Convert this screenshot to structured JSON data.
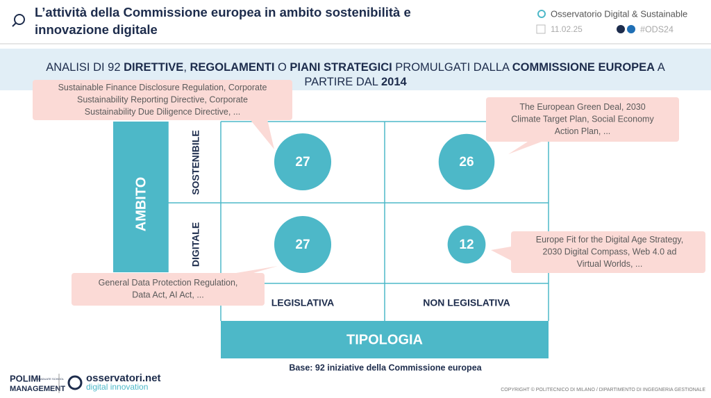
{
  "header": {
    "title_lines": [
      "L’attività della Commissione europea in ambito sostenibilità e",
      "innovazione digitale"
    ],
    "source": "Osservatorio Digital & Sustainable",
    "date": "11.02.25",
    "hashtag": "#ODS24"
  },
  "subtitle": {
    "line1": [
      {
        "text": "ANALISI DI 92 ",
        "bold": false
      },
      {
        "text": "DIRETTIVE",
        "bold": true
      },
      {
        "text": ", ",
        "bold": false
      },
      {
        "text": "REGOLAMENTI",
        "bold": true
      },
      {
        "text": " O ",
        "bold": false
      },
      {
        "text": "PIANI STRATEGICI",
        "bold": true
      },
      {
        "text": " PROMULGATI DALLA ",
        "bold": false
      },
      {
        "text": "COMMISSIONE EUROPEA",
        "bold": true
      },
      {
        "text": " A",
        "bold": false
      }
    ],
    "line2": [
      {
        "text": "PARTIRE DAL ",
        "bold": false
      },
      {
        "text": "2014",
        "bold": true
      }
    ]
  },
  "matrix": {
    "row_axis": "AMBITO",
    "rows": [
      "SOSTENIBILE",
      "DIGITALE"
    ],
    "col_axis": "TIPOLOGIA",
    "cols": [
      "LEGISLATIVA",
      "NON LEGISLATIVA"
    ],
    "cells": [
      [
        27,
        26
      ],
      [
        27,
        12
      ]
    ],
    "callouts": [
      [
        "Sustainable Finance Disclosure Regulation, Corporate",
        "Sustainability Reporting Directive, Corporate",
        "Sustainability Due Diligence Directive, ..."
      ],
      [
        "The European Green Deal, 2030",
        "Climate Target Plan, Social Economy",
        "Action Plan, ..."
      ],
      [
        "General Data Protection Regulation,",
        "Data Act, AI Act, ..."
      ],
      [
        "Europe Fit for the Digital Age Strategy,",
        "2030 Digital Compass, Web 4.0 ad",
        "Virtual Worlds, ..."
      ]
    ]
  },
  "footnote": "Base: 92 iniziative della Commissione europea",
  "footer": {
    "logo1": "POLIMI",
    "logo1_small": "GRADUATE SCHOOL",
    "logo1_sub": "MANAGEMENT",
    "logo2": "osservatori.net",
    "logo2_sub": "digital innovation",
    "copyright": "COPYRIGHT © POLITECNICO DI MILANO / DIPARTIMENTO DI INGEGNERIA GESTIONALE"
  }
}
